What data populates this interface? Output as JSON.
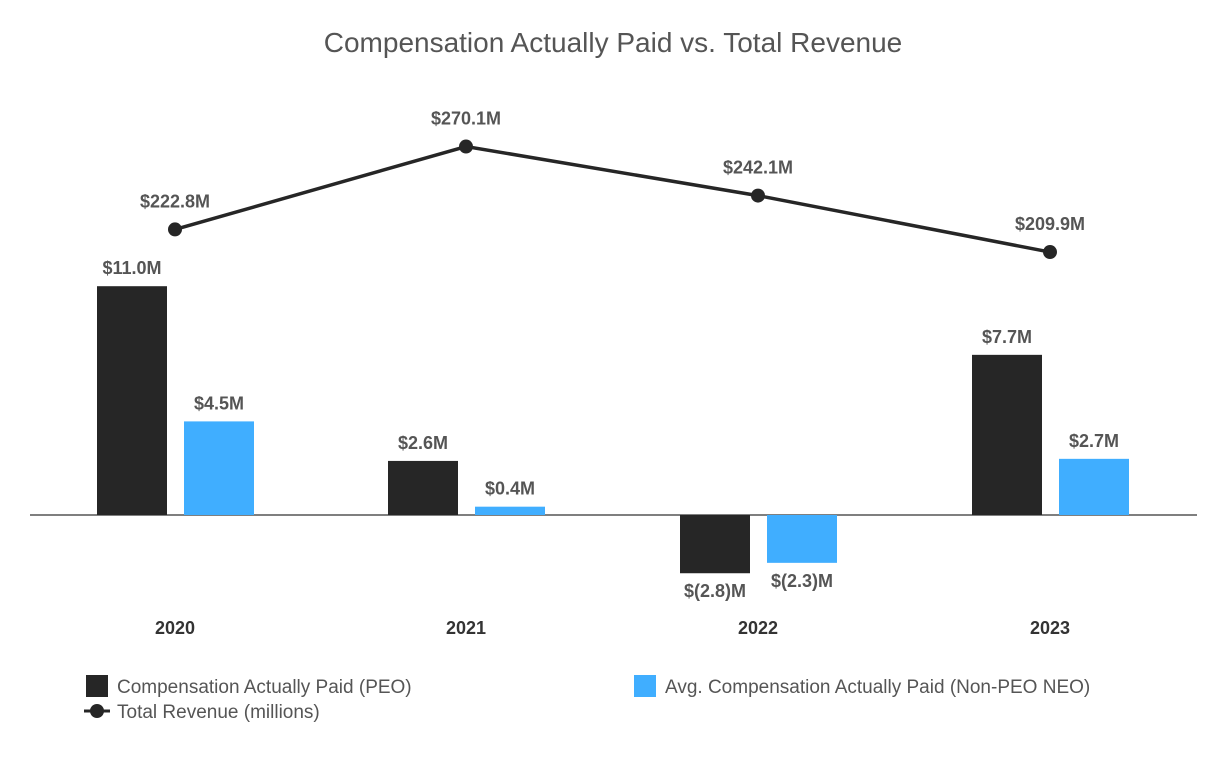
{
  "chart_data": {
    "type": "bar",
    "title": "Compensation Actually Paid vs. Total Revenue",
    "categories": [
      "2020",
      "2021",
      "2022",
      "2023"
    ],
    "series": [
      {
        "name": "Compensation Actually Paid (PEO)",
        "kind": "bar",
        "color": "#262626",
        "values": [
          11.0,
          2.6,
          -2.8,
          7.7
        ],
        "labels": [
          "$11.0M",
          "$2.6M",
          "$(2.8)M",
          "$7.7M"
        ]
      },
      {
        "name": "Avg. Compensation Actually Paid (Non-PEO NEO)",
        "kind": "bar",
        "color": "#40AEFF",
        "values": [
          4.5,
          0.4,
          -2.3,
          2.7
        ],
        "labels": [
          "$4.5M",
          "$0.4M",
          "$(2.3)M",
          "$2.7M"
        ]
      },
      {
        "name": "Total Revenue (millions)",
        "kind": "line",
        "color": "#262626",
        "values": [
          222.8,
          270.1,
          242.1,
          209.9
        ],
        "labels": [
          "$222.8M",
          "$270.1M",
          "$242.1M",
          "$209.9M"
        ]
      }
    ],
    "bar_ylim": [
      -4.0,
      14.0
    ],
    "line_ylim": [
      0,
      420
    ],
    "xlabel": "",
    "ylabel": "",
    "grid": false,
    "legend": "bottom"
  }
}
